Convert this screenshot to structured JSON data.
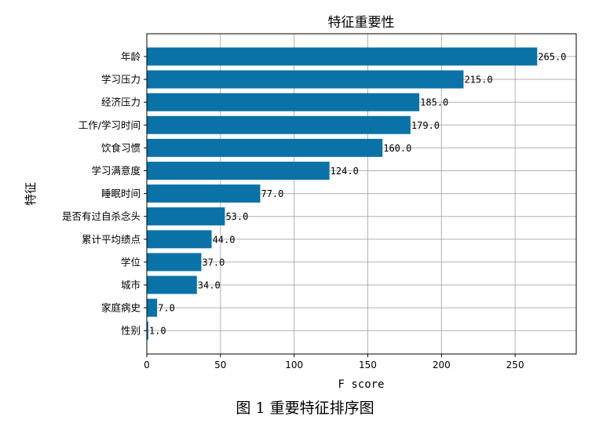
{
  "chart_data": {
    "type": "bar",
    "orientation": "horizontal",
    "title": "特征重要性",
    "xlabel": "F score",
    "ylabel": "特征",
    "categories": [
      "年龄",
      "学习压力",
      "经济压力",
      "工作/学习时间",
      "饮食习惯",
      "学习满意度",
      "睡眠时间",
      "是否有过自杀念头",
      "累计平均绩点",
      "学位",
      "城市",
      "家庭病史",
      "性别"
    ],
    "values": [
      265,
      215,
      185,
      179,
      160,
      124,
      77,
      53,
      44,
      37,
      34,
      7,
      1
    ],
    "value_labels": [
      "265.0",
      "215.0",
      "185.0",
      "179.0",
      "160.0",
      "124.0",
      "77.0",
      "53.0",
      "44.0",
      "37.0",
      "34.0",
      "7.0",
      "1.0"
    ],
    "xticks": [
      0,
      50,
      100,
      150,
      200,
      250
    ],
    "xlim": [
      0,
      291.5
    ],
    "grid": true,
    "bar_color": "#0a72a6"
  },
  "caption": "图 1 重要特征排序图"
}
